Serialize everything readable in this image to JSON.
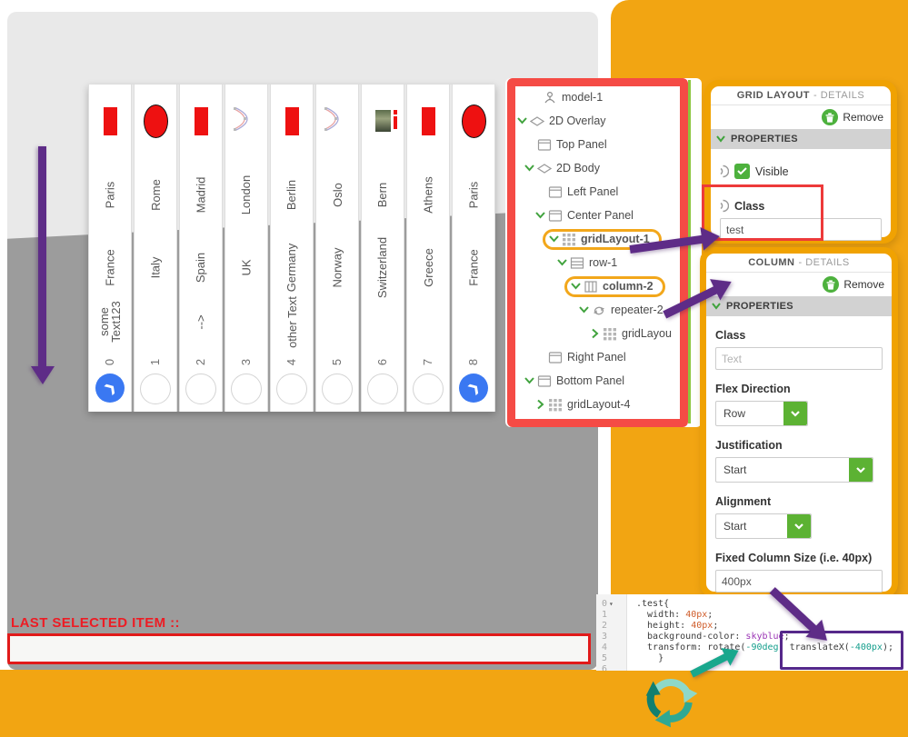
{
  "colors": {
    "orange": "#F2A512",
    "red_highlight": "#ED3A3A",
    "purple": "#5E2C87",
    "teal": "#19A78D",
    "blue_circle": "#3A78F2",
    "green": "#4DB13D"
  },
  "viewport": {
    "last_selected_label": "LAST SELECTED ITEM ::",
    "last_selected_value": "",
    "cards": [
      {
        "shape": "rect",
        "city": "Paris",
        "country": "France",
        "extra": "some\nText123",
        "index": "0",
        "selected": true
      },
      {
        "shape": "ellipse",
        "city": "Rome",
        "country": "Italy",
        "extra": "",
        "index": "1",
        "selected": false
      },
      {
        "shape": "rect",
        "city": "Madrid",
        "country": "Spain",
        "extra": "-->",
        "index": "2",
        "selected": false
      },
      {
        "shape": "curve",
        "city": "London",
        "country": "UK",
        "extra": "",
        "index": "3",
        "selected": false
      },
      {
        "shape": "rect",
        "city": "Berlin",
        "country": "Germany",
        "extra": "other Text",
        "index": "4",
        "selected": false
      },
      {
        "shape": "curve",
        "city": "Oslo",
        "country": "Norway",
        "extra": "",
        "index": "5",
        "selected": false
      },
      {
        "shape": "image",
        "city": "Bern",
        "country": "Switzerland",
        "extra": "",
        "index": "6",
        "selected": false
      },
      {
        "shape": "rect",
        "city": "Athens",
        "country": "Greece",
        "extra": "",
        "index": "7",
        "selected": false
      },
      {
        "shape": "ellipse",
        "city": "Paris",
        "country": "France",
        "extra": "",
        "index": "8",
        "selected": true
      }
    ]
  },
  "tree": {
    "items": [
      {
        "label": "model-1",
        "pad": 14,
        "chevron": "none",
        "icon": "model",
        "highlight": false
      },
      {
        "label": "2D Overlay",
        "pad": 0,
        "chevron": "down",
        "icon": "overlay",
        "highlight": false
      },
      {
        "label": "Top Panel",
        "pad": 8,
        "chevron": "none",
        "icon": "panel",
        "highlight": false
      },
      {
        "label": "2D Body",
        "pad": 8,
        "chevron": "down",
        "icon": "overlay",
        "highlight": false
      },
      {
        "label": "Left Panel",
        "pad": 20,
        "chevron": "none",
        "icon": "panel",
        "highlight": false
      },
      {
        "label": "Center Panel",
        "pad": 20,
        "chevron": "down",
        "icon": "panel",
        "highlight": false
      },
      {
        "label": "gridLayout-1",
        "pad": 32,
        "chevron": "down",
        "icon": "grid",
        "highlight": true
      },
      {
        "label": "row-1",
        "pad": 44,
        "chevron": "down",
        "icon": "row",
        "highlight": false
      },
      {
        "label": "column-2",
        "pad": 56,
        "chevron": "down",
        "icon": "column",
        "highlight": true
      },
      {
        "label": "repeater-2",
        "pad": 68,
        "chevron": "down",
        "icon": "repeater",
        "highlight": false
      },
      {
        "label": "gridLayou",
        "pad": 80,
        "chevron": "right",
        "icon": "grid",
        "highlight": false
      },
      {
        "label": "Right Panel",
        "pad": 20,
        "chevron": "none",
        "icon": "panel",
        "highlight": false
      },
      {
        "label": "Bottom Panel",
        "pad": 8,
        "chevron": "down",
        "icon": "panel",
        "highlight": false
      },
      {
        "label": "gridLayout-4",
        "pad": 20,
        "chevron": "right",
        "icon": "grid",
        "highlight": false
      }
    ]
  },
  "grid_panel": {
    "title": "GRID LAYOUT",
    "title_suffix": "- DETAILS",
    "remove_label": "Remove",
    "section": "PROPERTIES",
    "visible_label": "Visible",
    "class_label": "Class",
    "class_value": "test"
  },
  "column_panel": {
    "title": "COLUMN",
    "title_suffix": "- DETAILS",
    "remove_label": "Remove",
    "section": "PROPERTIES",
    "class_label": "Class",
    "class_placeholder": "Text",
    "flex_direction_label": "Flex Direction",
    "flex_direction_value": "Row",
    "justification_label": "Justification",
    "justification_value": "Start",
    "alignment_label": "Alignment",
    "alignment_value": "Start",
    "fixed_size_label": "Fixed Column Size (i.e. 40px)",
    "fixed_size_value": "400px"
  },
  "code_editor": {
    "gutter": [
      {
        "num": "0",
        "fold": "▾"
      },
      {
        "num": "1",
        "fold": ""
      },
      {
        "num": "2",
        "fold": ""
      },
      {
        "num": "3",
        "fold": ""
      },
      {
        "num": "4",
        "fold": ""
      },
      {
        "num": "5",
        "fold": ""
      },
      {
        "num": "6",
        "fold": ""
      }
    ],
    "lines": [
      [
        {
          "t": ".test{",
          "c": "p"
        }
      ],
      [
        {
          "t": "  width: ",
          "c": "p"
        },
        {
          "t": "40px",
          "c": "v"
        },
        {
          "t": ";",
          "c": "p"
        }
      ],
      [
        {
          "t": "  height: ",
          "c": "p"
        },
        {
          "t": "40px",
          "c": "v"
        },
        {
          "t": ";",
          "c": "p"
        }
      ],
      [
        {
          "t": "  background-color: ",
          "c": "p"
        },
        {
          "t": "skyblue",
          "c": "k"
        },
        {
          "t": ";",
          "c": "p"
        }
      ],
      [
        {
          "t": "  transform: rotate(",
          "c": "p"
        },
        {
          "t": "-90deg",
          "c": "t"
        },
        {
          "t": ") translateX(",
          "c": "p"
        },
        {
          "t": "-400px",
          "c": "t"
        },
        {
          "t": ");",
          "c": "p"
        }
      ],
      [
        {
          "t": "    }",
          "c": "p"
        }
      ]
    ]
  }
}
